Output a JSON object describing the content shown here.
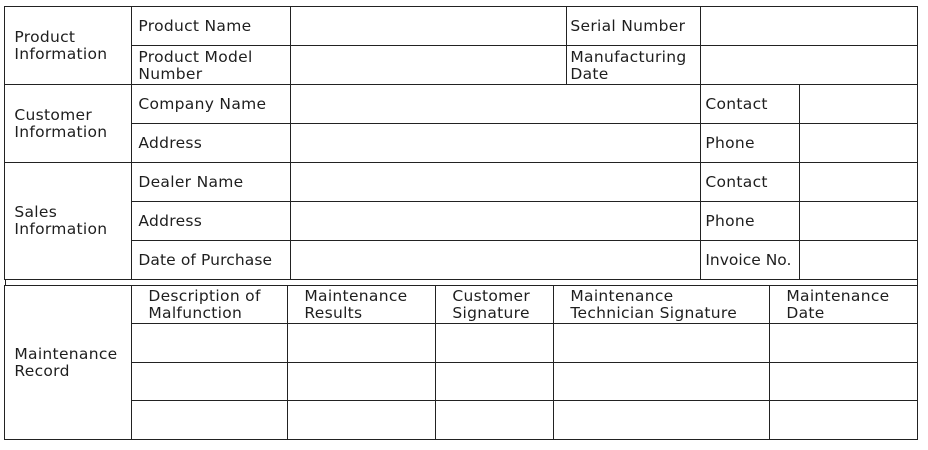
{
  "product_info": {
    "section": "Product\nInformation",
    "product_name": "Product Name",
    "serial_number": "Serial Number",
    "model_number": "Product Model\nNumber",
    "manufacturing_date": "Manufacturing\nDate"
  },
  "customer_info": {
    "section": "Customer\nInformation",
    "company_name": "Company Name",
    "contact": "Contact",
    "address": "Address",
    "phone": "Phone"
  },
  "sales_info": {
    "section": "Sales\nInformation",
    "dealer_name": "Dealer Name",
    "contact": "Contact",
    "address": "Address",
    "phone": "Phone",
    "date_of_purchase": "Date of Purchase",
    "invoice_no": "Invoice No."
  },
  "maintenance": {
    "section": "Maintenance\nRecord",
    "columns": [
      "Description of\nMalfunction",
      "Maintenance\nResults",
      "Customer\nSignature",
      "Maintenance\nTechnician Signature",
      "Maintenance\nDate"
    ]
  }
}
